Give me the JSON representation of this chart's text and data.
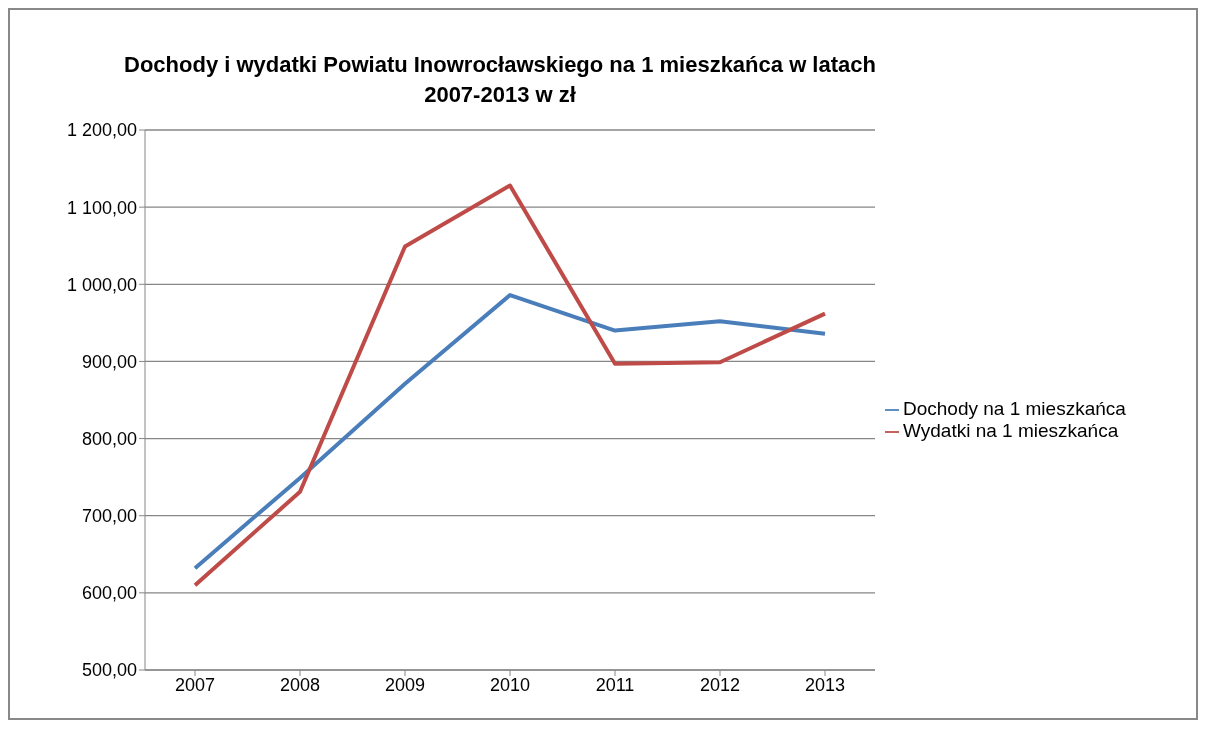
{
  "chart_data": {
    "type": "line",
    "title": "Dochody i wydatki Powiatu Inowrocławskiego na 1 mieszkańca w latach 2007-2013 w zł",
    "categories": [
      "2007",
      "2008",
      "2009",
      "2010",
      "2011",
      "2012",
      "2013"
    ],
    "series": [
      {
        "name": "Dochody na 1 mieszkańca",
        "color": "#4a7ebb",
        "values": [
          632,
          749,
          871,
          986,
          940,
          952,
          936
        ]
      },
      {
        "name": "Wydatki na 1 mieszkańca",
        "color": "#be4b48",
        "values": [
          610,
          731,
          1049,
          1128,
          897,
          899,
          962
        ]
      }
    ],
    "ylim": [
      500,
      1200
    ],
    "yticks": [
      {
        "value": 500,
        "label": "500,00"
      },
      {
        "value": 600,
        "label": "600,00"
      },
      {
        "value": 700,
        "label": "700,00"
      },
      {
        "value": 800,
        "label": "800,00"
      },
      {
        "value": 900,
        "label": "900,00"
      },
      {
        "value": 1000,
        "label": "1 000,00"
      },
      {
        "value": 1100,
        "label": "1 100,00"
      },
      {
        "value": 1200,
        "label": "1 200,00"
      }
    ],
    "grid": "y",
    "legend": "right",
    "marker": "none",
    "line_style": "solid"
  }
}
